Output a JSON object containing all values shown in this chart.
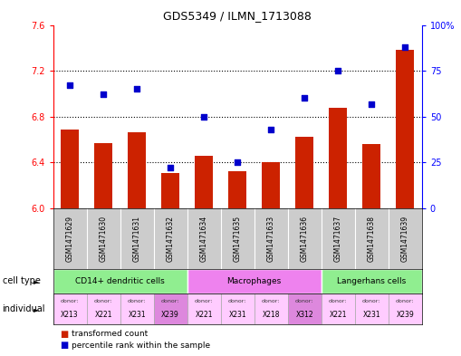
{
  "title": "GDS5349 / ILMN_1713088",
  "samples": [
    "GSM1471629",
    "GSM1471630",
    "GSM1471631",
    "GSM1471632",
    "GSM1471634",
    "GSM1471635",
    "GSM1471633",
    "GSM1471636",
    "GSM1471637",
    "GSM1471638",
    "GSM1471639"
  ],
  "red_values": [
    6.69,
    6.57,
    6.66,
    6.31,
    6.46,
    6.32,
    6.4,
    6.62,
    6.88,
    6.56,
    7.38
  ],
  "blue_values": [
    67,
    62,
    65,
    22,
    50,
    25,
    43,
    60,
    75,
    57,
    88
  ],
  "ylim": [
    6.0,
    7.6
  ],
  "y2lim": [
    0,
    100
  ],
  "yticks": [
    6.0,
    6.4,
    6.8,
    7.2,
    7.6
  ],
  "y2ticks": [
    0,
    25,
    50,
    75,
    100
  ],
  "y2tick_labels": [
    "0",
    "25",
    "50",
    "75",
    "100%"
  ],
  "cell_type_groups": [
    {
      "label": "CD14+ dendritic cells",
      "indices": [
        0,
        1,
        2,
        3
      ],
      "color": "#90EE90"
    },
    {
      "label": "Macrophages",
      "indices": [
        4,
        5,
        6,
        7
      ],
      "color": "#EE82EE"
    },
    {
      "label": "Langerhans cells",
      "indices": [
        8,
        9,
        10
      ],
      "color": "#90EE90"
    }
  ],
  "individuals": [
    {
      "donor": "X213",
      "color": "#ffccff"
    },
    {
      "donor": "X221",
      "color": "#ffccff"
    },
    {
      "donor": "X231",
      "color": "#ffccff"
    },
    {
      "donor": "X239",
      "color": "#dd88dd"
    },
    {
      "donor": "X221",
      "color": "#ffccff"
    },
    {
      "donor": "X231",
      "color": "#ffccff"
    },
    {
      "donor": "X218",
      "color": "#ffccff"
    },
    {
      "donor": "X312",
      "color": "#dd88dd"
    },
    {
      "donor": "X221",
      "color": "#ffccff"
    },
    {
      "donor": "X231",
      "color": "#ffccff"
    },
    {
      "donor": "X239",
      "color": "#ffccff"
    }
  ],
  "bar_color": "#cc2200",
  "dot_color": "#0000cc",
  "legend_red": "transformed count",
  "legend_blue": "percentile rank within the sample",
  "label_cell_type": "cell type",
  "label_individual": "individual",
  "background_color": "#ffffff",
  "gsm_bg_color": "#cccccc",
  "grid_color": "#000000"
}
